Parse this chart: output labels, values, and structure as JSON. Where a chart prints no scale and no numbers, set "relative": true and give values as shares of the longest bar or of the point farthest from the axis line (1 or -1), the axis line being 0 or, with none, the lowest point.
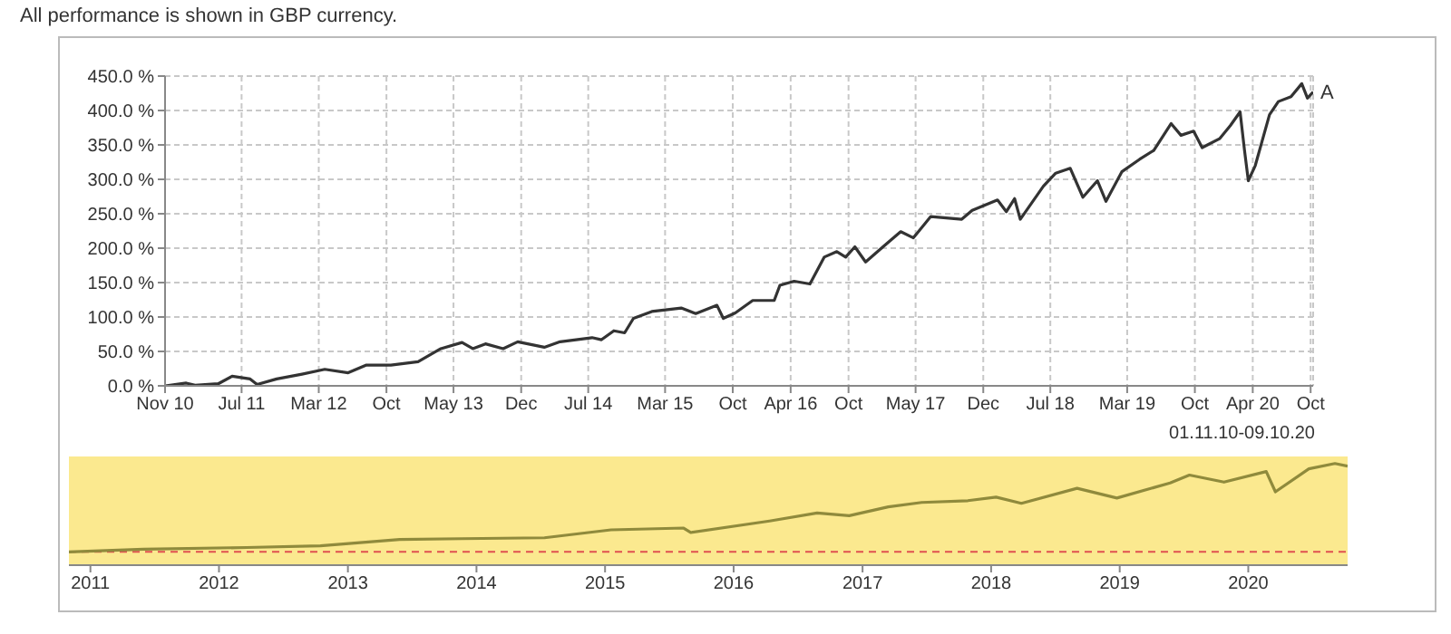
{
  "chart_data": [
    {
      "type": "line",
      "title": "All performance is shown in GBP currency.",
      "annotations": [
        "01.11.10-09.10.20"
      ],
      "grid": true,
      "legend": false,
      "x": [
        "2010-11-01",
        "2011-01-07",
        "2011-02-04",
        "2011-04-18",
        "2011-06-01",
        "2011-07-28",
        "2011-08-19",
        "2011-10-20",
        "2012-01-08",
        "2012-03-20",
        "2012-06-02",
        "2012-07-28",
        "2012-10-15",
        "2013-01-09",
        "2013-03-22",
        "2013-05-28",
        "2013-07-01",
        "2013-08-10",
        "2013-10-05",
        "2013-11-20",
        "2014-02-12",
        "2014-04-03",
        "2014-07-13",
        "2014-08-12",
        "2014-09-20",
        "2014-10-24",
        "2014-11-21",
        "2015-01-18",
        "2015-04-21",
        "2015-06-06",
        "2015-08-12",
        "2015-09-01",
        "2015-10-09",
        "2015-12-03",
        "2016-02-09",
        "2016-02-27",
        "2016-04-12",
        "2016-06-01",
        "2016-07-16",
        "2016-08-25",
        "2016-09-22",
        "2016-10-21",
        "2016-11-24",
        "2017-01-18",
        "2017-03-15",
        "2017-04-24",
        "2017-06-18",
        "2017-09-24",
        "2017-10-27",
        "2018-01-15",
        "2018-02-12",
        "2018-03-10",
        "2018-03-28",
        "2018-06-09",
        "2018-07-18",
        "2018-09-02",
        "2018-10-12",
        "2018-11-27",
        "2018-12-24",
        "2019-02-12",
        "2019-04-09",
        "2019-05-24",
        "2019-07-18",
        "2019-08-18",
        "2019-09-27",
        "2019-10-24",
        "2019-12-18",
        "2020-01-21",
        "2020-02-21",
        "2020-03-06",
        "2020-03-18",
        "2020-04-09",
        "2020-05-24",
        "2020-06-21",
        "2020-07-31",
        "2020-09-03",
        "2020-09-21",
        "2020-10-09"
      ],
      "series": [
        {
          "name": "A",
          "color": "#333333",
          "values": [
            0,
            4,
            1,
            3,
            14,
            10,
            2,
            10,
            17,
            24,
            19,
            30,
            30,
            35,
            54,
            63,
            54,
            61,
            54,
            64,
            56,
            64,
            70,
            67,
            80,
            77,
            98,
            108,
            113,
            105,
            117,
            98,
            106,
            124,
            124,
            146,
            152,
            148,
            187,
            195,
            187,
            202,
            180,
            202,
            224,
            215,
            246,
            242,
            255,
            270,
            253,
            272,
            242,
            290,
            309,
            316,
            274,
            298,
            268,
            311,
            329,
            342,
            381,
            364,
            370,
            346,
            359,
            378,
            398,
            342,
            298,
            320,
            394,
            413,
            420,
            439,
            418,
            427
          ]
        }
      ],
      "xlim": [
        "2010-11-01",
        "2020-10-09"
      ],
      "xticks": [
        {
          "value": "2010-11-01",
          "label": "Nov 10"
        },
        {
          "value": "2011-07-01",
          "label": "Jul 11"
        },
        {
          "value": "2012-03-01",
          "label": "Mar 12"
        },
        {
          "value": "2012-10-01",
          "label": "Oct"
        },
        {
          "value": "2013-05-01",
          "label": "May 13"
        },
        {
          "value": "2013-12-01",
          "label": "Dec"
        },
        {
          "value": "2014-07-01",
          "label": "Jul 14"
        },
        {
          "value": "2015-03-01",
          "label": "Mar 15"
        },
        {
          "value": "2015-10-01",
          "label": "Oct"
        },
        {
          "value": "2016-04-01",
          "label": "Apr 16"
        },
        {
          "value": "2016-10-01",
          "label": "Oct"
        },
        {
          "value": "2017-05-01",
          "label": "May 17"
        },
        {
          "value": "2017-12-01",
          "label": "Dec"
        },
        {
          "value": "2018-07-01",
          "label": "Jul 18"
        },
        {
          "value": "2019-03-01",
          "label": "Mar 19"
        },
        {
          "value": "2019-10-01",
          "label": "Oct"
        },
        {
          "value": "2020-04-01",
          "label": "Apr 20"
        },
        {
          "value": "2020-10-01",
          "label": "Oct"
        }
      ],
      "ylim": [
        0,
        450
      ],
      "yticks": [
        {
          "value": 0,
          "label": "0.0 %"
        },
        {
          "value": 50,
          "label": "50.0 %"
        },
        {
          "value": 100,
          "label": "100.0 %"
        },
        {
          "value": 150,
          "label": "150.0 %"
        },
        {
          "value": 200,
          "label": "200.0 %"
        },
        {
          "value": 250,
          "label": "250.0 %"
        },
        {
          "value": 300,
          "label": "300.0 %"
        },
        {
          "value": 350,
          "label": "350.0 %"
        },
        {
          "value": 400,
          "label": "400.0 %"
        },
        {
          "value": 450,
          "label": "450.0 %"
        }
      ]
    },
    {
      "type": "line",
      "relative": true,
      "legend": false,
      "x": [
        "2010-11-01",
        "2011-06-01",
        "2012-03-20",
        "2012-10-15",
        "2013-05-28",
        "2013-11-20",
        "2014-07-13",
        "2015-01-18",
        "2015-08-12",
        "2015-09-01",
        "2016-04-12",
        "2016-08-25",
        "2016-11-24",
        "2017-03-15",
        "2017-06-18",
        "2017-10-27",
        "2018-01-15",
        "2018-03-28",
        "2018-09-02",
        "2018-12-24",
        "2019-05-24",
        "2019-07-18",
        "2019-10-24",
        "2020-02-21",
        "2020-03-18",
        "2020-06-21",
        "2020-09-03",
        "2020-10-09"
      ],
      "series": [
        {
          "color": "#8f8a3c",
          "values": [
            0,
            0.03,
            0.05,
            0.07,
            0.14,
            0.15,
            0.16,
            0.25,
            0.27,
            0.22,
            0.35,
            0.44,
            0.41,
            0.51,
            0.56,
            0.58,
            0.62,
            0.55,
            0.72,
            0.61,
            0.78,
            0.87,
            0.79,
            0.91,
            0.68,
            0.94,
            1,
            0.97
          ]
        }
      ],
      "xlim": [
        "2010-11-01",
        "2020-10-09"
      ],
      "xticks": [
        {
          "value": "2011-01-01",
          "label": "2011"
        },
        {
          "value": "2012-01-01",
          "label": "2012"
        },
        {
          "value": "2013-01-01",
          "label": "2013"
        },
        {
          "value": "2014-01-01",
          "label": "2014"
        },
        {
          "value": "2015-01-01",
          "label": "2015"
        },
        {
          "value": "2016-01-01",
          "label": "2016"
        },
        {
          "value": "2017-01-01",
          "label": "2017"
        },
        {
          "value": "2018-01-01",
          "label": "2018"
        },
        {
          "value": "2019-01-01",
          "label": "2019"
        },
        {
          "value": "2020-01-01",
          "label": "2020"
        }
      ],
      "bands": [
        {
          "axis": "x",
          "from": "2010-11-01",
          "to": "2020-10-09",
          "color": "#fbe98f"
        }
      ],
      "ref_lines": [
        {
          "axis": "y",
          "value": 0,
          "color": "#e05050",
          "line_style": "dashed"
        }
      ]
    }
  ]
}
